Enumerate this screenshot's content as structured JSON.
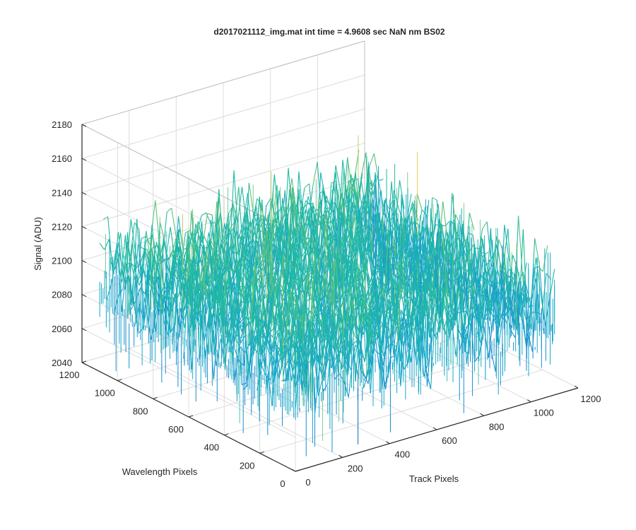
{
  "chart_data": {
    "type": "surface",
    "title": "d2017021112_img.mat int time = 4.9608 sec  NaN nm BS02",
    "xlabel": "Track Pixels",
    "ylabel": "Wavelength Pixels",
    "zlabel": "Signal (ADU)",
    "xlim": [
      0,
      1200
    ],
    "ylim": [
      0,
      1200
    ],
    "zlim": [
      2040,
      2180
    ],
    "x_ticks": [
      "0",
      "200",
      "400",
      "600",
      "800",
      "1000",
      "1200"
    ],
    "y_ticks": [
      "0",
      "200",
      "400",
      "600",
      "800",
      "1000",
      "1200"
    ],
    "z_ticks": [
      "2040",
      "2060",
      "2080",
      "2100",
      "2120",
      "2140",
      "2160",
      "2180"
    ],
    "grid": true,
    "colormap": "parula",
    "data_extent": {
      "x": [
        0,
        1100
      ],
      "y": [
        0,
        1100
      ]
    },
    "mean_signal": 2100,
    "noise_range": [
      2045,
      2170
    ],
    "colors": {
      "low": "#0072bd",
      "mid": "#21b8a4",
      "high": "#e0c83c",
      "axis": "#262626",
      "grid": "#dcdcdc"
    }
  }
}
